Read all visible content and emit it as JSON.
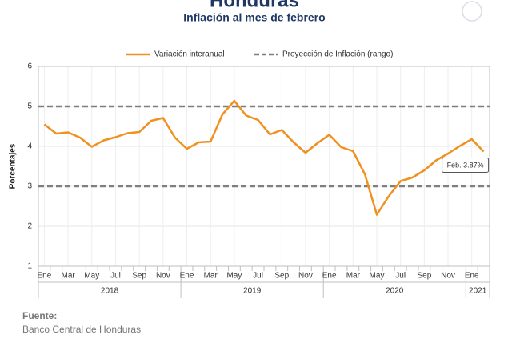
{
  "chart_data": {
    "type": "line",
    "title": "Honduras",
    "subtitle": "Inflación al mes de febrero",
    "y_label": "Porcentajes",
    "source_label": "Fuente:",
    "source": "Banco Central de Honduras",
    "categories": [
      "Ene",
      null,
      "Mar",
      null,
      "May",
      null,
      "Jul",
      null,
      "Sep",
      null,
      "Nov",
      null,
      "Ene",
      null,
      "Mar",
      null,
      "May",
      null,
      "Jul",
      null,
      "Sep",
      null,
      "Nov",
      null,
      "Ene",
      null,
      "Mar",
      null,
      "May",
      null,
      "Jul",
      null,
      "Sep",
      null,
      "Nov",
      null,
      "Ene",
      null
    ],
    "year_labels": [
      "2018",
      "2019",
      "2020",
      "2021"
    ],
    "series": [
      {
        "name": "Variación interanual",
        "color": "#f0901e",
        "values": [
          4.55,
          4.32,
          4.35,
          4.22,
          3.99,
          4.15,
          4.23,
          4.33,
          4.36,
          4.64,
          4.71,
          4.22,
          3.94,
          4.1,
          4.12,
          4.8,
          5.14,
          4.77,
          4.66,
          4.3,
          4.41,
          4.1,
          3.84,
          4.08,
          4.29,
          3.98,
          3.88,
          3.3,
          2.29,
          2.75,
          3.13,
          3.22,
          3.4,
          3.65,
          3.82,
          4.01,
          4.18,
          3.87
        ],
        "value_labels": [
          null,
          null,
          null,
          null,
          null,
          null,
          null,
          null,
          null,
          null,
          null,
          null,
          null,
          null,
          null,
          null,
          null,
          null,
          null,
          null,
          null,
          null,
          null,
          null,
          null,
          null,
          null,
          null,
          null,
          null,
          null,
          null,
          null,
          null,
          null,
          null,
          null,
          "Feb. 3.87%"
        ]
      }
    ],
    "reference_lines": {
      "name": "Proyección de Inflación (rango)",
      "color": "#7f7f7f",
      "values": [
        3,
        5
      ]
    },
    "ylim": [
      1,
      6
    ],
    "yticks": [
      1,
      2,
      3,
      4,
      5,
      6
    ],
    "grid": true
  }
}
